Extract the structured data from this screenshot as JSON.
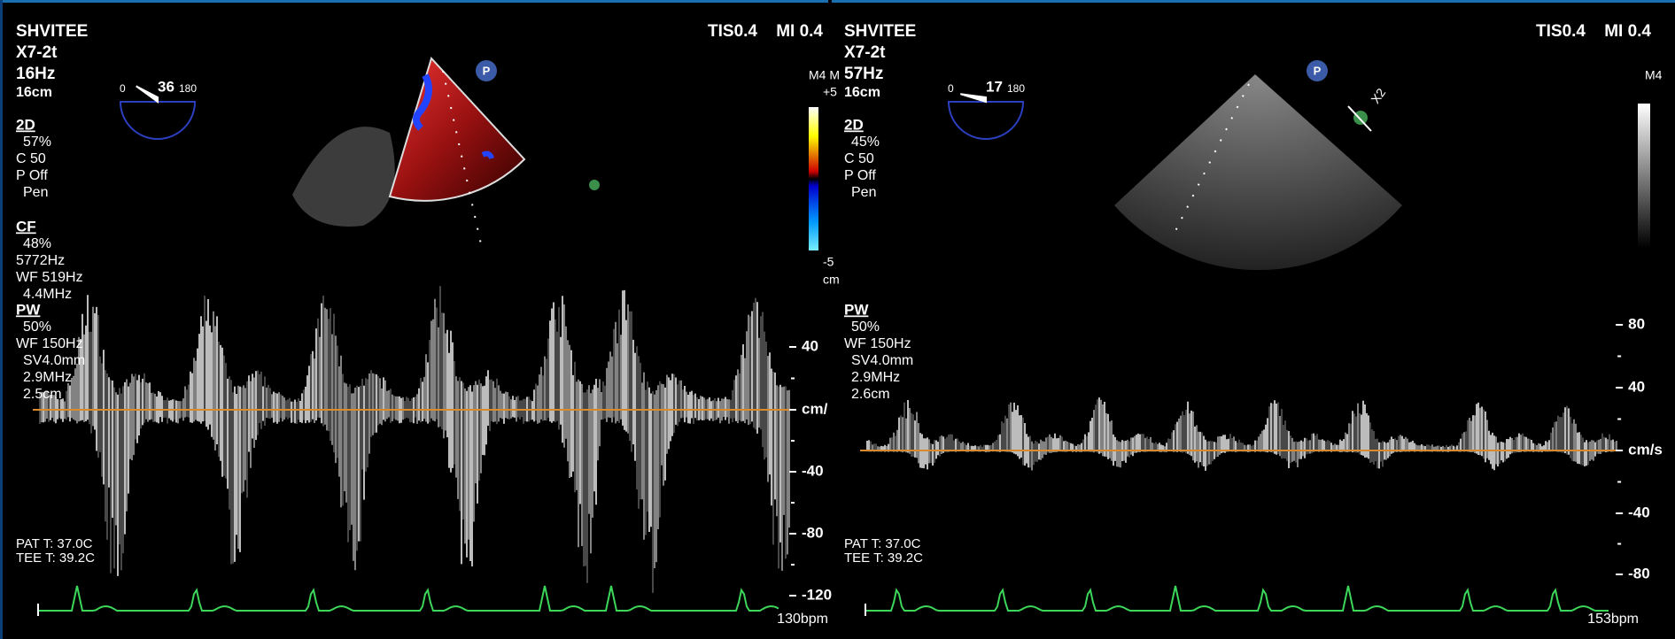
{
  "panels": [
    {
      "header": {
        "system": "SHVITEE",
        "probe": "X7-2t",
        "frame_rate": "16Hz",
        "depth": "16cm",
        "tis": "TIS0.4",
        "mi": "MI 0.4"
      },
      "angle": {
        "min": "0",
        "value": "36",
        "max": "180"
      },
      "icon": "P",
      "sections": [
        {
          "title": "2D",
          "lines": [
            "57%",
            "C 50",
            "P Off",
            "Pen"
          ]
        },
        {
          "title": "CF",
          "lines": [
            "48%",
            "5772Hz",
            "WF 519Hz",
            "4.4MHz"
          ]
        },
        {
          "title": "PW",
          "lines": [
            "50%",
            "WF 150Hz",
            "SV4.0mm",
            "2.9MHz",
            "2.5cm"
          ]
        }
      ],
      "color_scale": [
        "M4 M",
        "+5",
        "-5",
        "cm"
      ],
      "velocity_scale": [
        "40",
        "cm/",
        "-40",
        "-80",
        "-120"
      ],
      "temperatures": [
        "PAT T: 37.0C",
        "TEE T: 39.2C"
      ],
      "heart_rate": "130bpm"
    },
    {
      "header": {
        "system": "SHVITEE",
        "probe": "X7-2t",
        "frame_rate": "57Hz",
        "depth": "16cm",
        "tis": "TIS0.4",
        "mi": "MI 0.4"
      },
      "angle": {
        "min": "0",
        "value": "17",
        "max": "180"
      },
      "icon": "P",
      "marker_label": "X2",
      "sections": [
        {
          "title": "2D",
          "lines": [
            "45%",
            "C 50",
            "P Off",
            "Pen"
          ]
        },
        {
          "title": "PW",
          "lines": [
            "50%",
            "WF 150Hz",
            "SV4.0mm",
            "2.9MHz",
            "2.6cm"
          ]
        }
      ],
      "color_scale": [
        "M4"
      ],
      "velocity_scale": [
        "80",
        "40",
        "cm/s",
        "-40",
        "-80"
      ],
      "temperatures": [
        "PAT T: 37.0C",
        "TEE T: 39.2C"
      ],
      "heart_rate": "153bpm"
    }
  ]
}
